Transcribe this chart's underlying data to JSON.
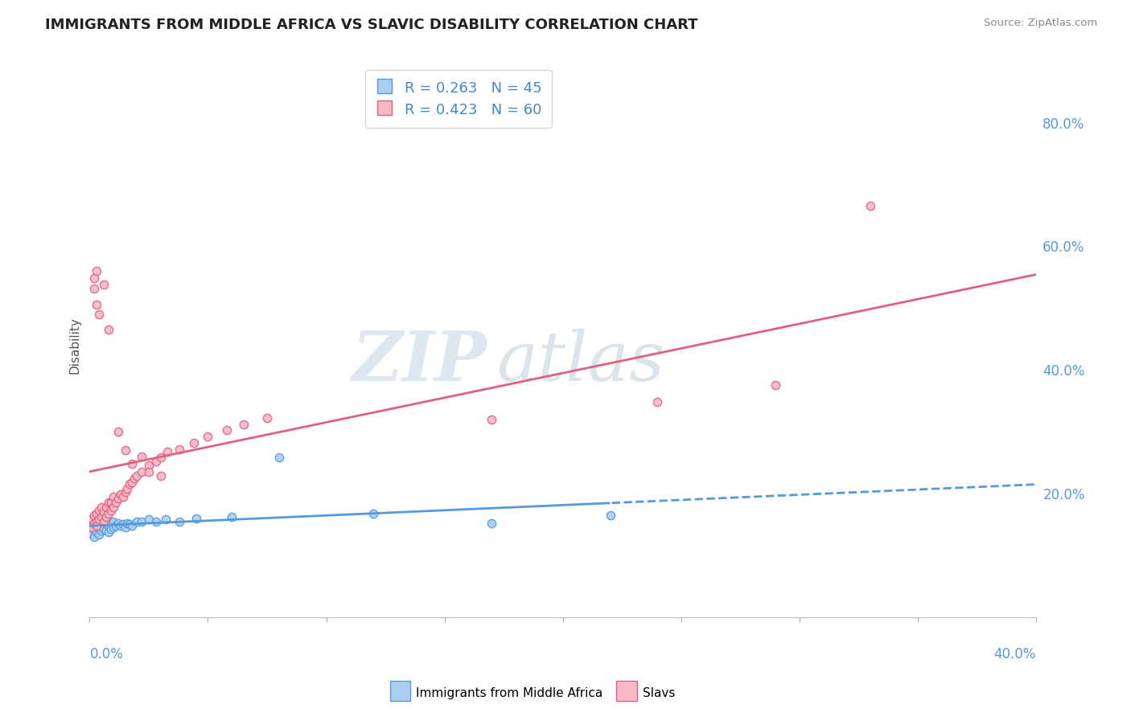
{
  "title": "IMMIGRANTS FROM MIDDLE AFRICA VS SLAVIC DISABILITY CORRELATION CHART",
  "source": "Source: ZipAtlas.com",
  "ylabel": "Disability",
  "ylabel_right_ticks": [
    "80.0%",
    "60.0%",
    "40.0%",
    "20.0%"
  ],
  "ylabel_right_values": [
    0.8,
    0.6,
    0.4,
    0.2
  ],
  "xlim": [
    0.0,
    0.4
  ],
  "ylim": [
    0.0,
    0.88
  ],
  "blue_R": 0.263,
  "blue_N": 45,
  "pink_R": 0.423,
  "pink_N": 60,
  "blue_color": "#aacfee",
  "pink_color": "#f8b8c5",
  "blue_line_color": "#5599dd",
  "pink_line_color": "#e06080",
  "watermark_ZIP": "ZIP",
  "watermark_atlas": "atlas",
  "legend_label_blue": "Immigrants from Middle Africa",
  "legend_label_pink": "Slavs",
  "blue_scatter_x": [
    0.0005,
    0.001,
    0.001,
    0.002,
    0.002,
    0.002,
    0.003,
    0.003,
    0.003,
    0.004,
    0.004,
    0.004,
    0.005,
    0.005,
    0.005,
    0.006,
    0.006,
    0.007,
    0.007,
    0.008,
    0.008,
    0.009,
    0.009,
    0.01,
    0.01,
    0.011,
    0.012,
    0.013,
    0.014,
    0.015,
    0.016,
    0.017,
    0.018,
    0.02,
    0.022,
    0.025,
    0.028,
    0.032,
    0.038,
    0.045,
    0.06,
    0.08,
    0.12,
    0.17,
    0.22
  ],
  "blue_scatter_y": [
    0.145,
    0.148,
    0.135,
    0.15,
    0.142,
    0.13,
    0.155,
    0.148,
    0.138,
    0.152,
    0.145,
    0.133,
    0.158,
    0.148,
    0.14,
    0.155,
    0.143,
    0.15,
    0.14,
    0.148,
    0.138,
    0.152,
    0.143,
    0.155,
    0.145,
    0.148,
    0.152,
    0.148,
    0.15,
    0.145,
    0.152,
    0.15,
    0.148,
    0.155,
    0.155,
    0.158,
    0.155,
    0.158,
    0.155,
    0.16,
    0.162,
    0.258,
    0.168,
    0.152,
    0.165
  ],
  "pink_scatter_x": [
    0.0005,
    0.001,
    0.001,
    0.002,
    0.002,
    0.003,
    0.003,
    0.003,
    0.004,
    0.004,
    0.005,
    0.005,
    0.006,
    0.006,
    0.007,
    0.007,
    0.008,
    0.008,
    0.009,
    0.009,
    0.01,
    0.01,
    0.011,
    0.012,
    0.013,
    0.014,
    0.015,
    0.016,
    0.017,
    0.018,
    0.019,
    0.02,
    0.022,
    0.025,
    0.028,
    0.03,
    0.033,
    0.038,
    0.044,
    0.05,
    0.058,
    0.065,
    0.075,
    0.012,
    0.015,
    0.018,
    0.022,
    0.025,
    0.03,
    0.008,
    0.006,
    0.004,
    0.003,
    0.002,
    0.002,
    0.003,
    0.17,
    0.24,
    0.29,
    0.33
  ],
  "pink_scatter_y": [
    0.148,
    0.145,
    0.158,
    0.152,
    0.165,
    0.155,
    0.168,
    0.148,
    0.158,
    0.172,
    0.162,
    0.178,
    0.155,
    0.17,
    0.162,
    0.178,
    0.168,
    0.185,
    0.172,
    0.185,
    0.178,
    0.195,
    0.185,
    0.192,
    0.198,
    0.195,
    0.202,
    0.208,
    0.215,
    0.218,
    0.225,
    0.228,
    0.235,
    0.245,
    0.252,
    0.258,
    0.268,
    0.272,
    0.282,
    0.292,
    0.302,
    0.312,
    0.322,
    0.3,
    0.27,
    0.248,
    0.26,
    0.235,
    0.228,
    0.465,
    0.538,
    0.49,
    0.505,
    0.532,
    0.548,
    0.56,
    0.32,
    0.348,
    0.375,
    0.665
  ]
}
